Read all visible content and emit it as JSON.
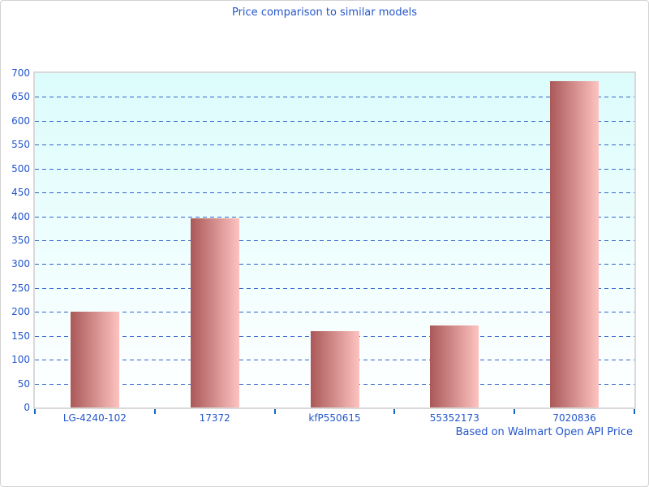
{
  "window": {
    "title": "Price comparison to similar models",
    "footer_note": "Based on Walmart Open API Price"
  },
  "colors": {
    "text_blue": "#2356cb",
    "grid_blue": "#3365cb",
    "bar_left": "#aa5858",
    "bar_right": "#fdc3c0",
    "plot_bg_top": "#dcfcfc",
    "plot_bg_bottom": "#ffffff",
    "plot_border": "#d9d9d9",
    "page_border": "#d3d3d3"
  },
  "chart_data": {
    "type": "bar",
    "title": "Price comparison to similar models",
    "categories": [
      "LG-4240-102",
      "17372",
      "kfP550615",
      "55352173",
      "7020836"
    ],
    "values": [
      200,
      396,
      160,
      171,
      683
    ],
    "xlabel": "",
    "ylabel": "",
    "ylim": [
      0,
      700
    ],
    "ytick_step": 50,
    "ytick_labels": [
      "0",
      "50",
      "100",
      "150",
      "200",
      "250",
      "300",
      "350",
      "400",
      "450",
      "500",
      "550",
      "600",
      "650",
      "700"
    ],
    "gridlines": "horizontal-dashed",
    "legend_position": "none",
    "bar_style": "horizontal red gradient",
    "annotation": "Based on Walmart Open API Price"
  }
}
